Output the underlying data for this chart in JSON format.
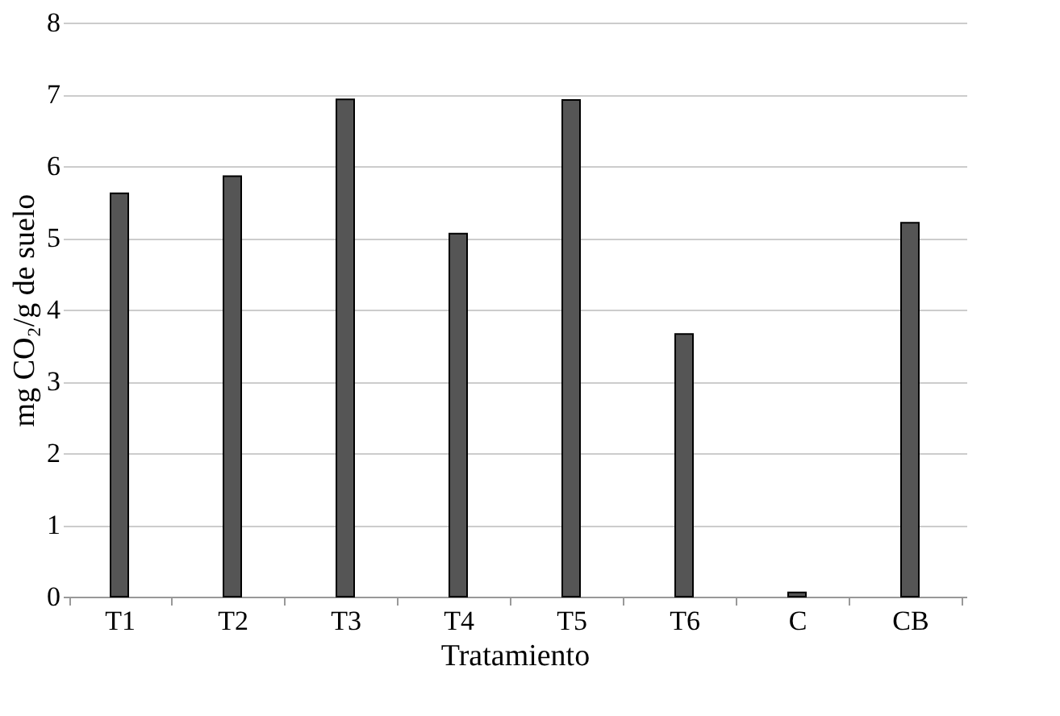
{
  "chart_data": {
    "type": "bar",
    "xlabel": "Tratamiento",
    "ylabel": "mg CO₂/g de suelo",
    "categories": [
      "T1",
      "T2",
      "T3",
      "T4",
      "T5",
      "T6",
      "C",
      "CB"
    ],
    "values": [
      5.62,
      5.86,
      6.93,
      5.06,
      6.92,
      3.66,
      0.06,
      5.21
    ],
    "color": "#555555",
    "ylim": [
      0,
      8
    ],
    "yticks": [
      0,
      1,
      2,
      3,
      4,
      5,
      6,
      7,
      8
    ],
    "grid": "y"
  }
}
